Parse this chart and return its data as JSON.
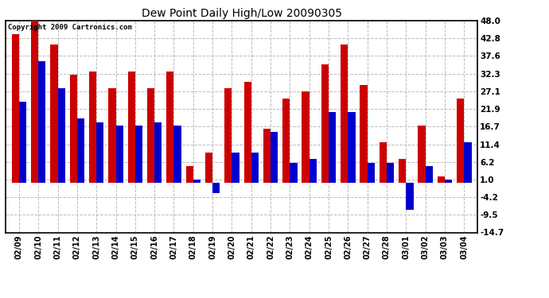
{
  "title": "Dew Point Daily High/Low 20090305",
  "copyright": "Copyright 2009 Cartronics.com",
  "dates": [
    "02/09",
    "02/10",
    "02/11",
    "02/12",
    "02/13",
    "02/14",
    "02/15",
    "02/16",
    "02/17",
    "02/18",
    "02/19",
    "02/20",
    "02/21",
    "02/22",
    "02/23",
    "02/24",
    "02/25",
    "02/26",
    "02/27",
    "02/28",
    "03/01",
    "03/02",
    "03/03",
    "03/04"
  ],
  "highs": [
    44.0,
    48.0,
    41.0,
    32.0,
    33.0,
    28.0,
    33.0,
    28.0,
    33.0,
    5.0,
    9.0,
    28.0,
    30.0,
    16.0,
    25.0,
    27.0,
    35.0,
    41.0,
    29.0,
    12.0,
    7.0,
    17.0,
    2.0,
    25.0
  ],
  "lows": [
    24.0,
    36.0,
    28.0,
    19.0,
    18.0,
    17.0,
    17.0,
    18.0,
    17.0,
    1.0,
    -3.0,
    9.0,
    9.0,
    15.0,
    6.0,
    7.0,
    21.0,
    21.0,
    6.0,
    6.0,
    -8.0,
    5.0,
    1.0,
    12.0
  ],
  "high_color": "#cc0000",
  "low_color": "#0000cc",
  "bg_color": "#ffffff",
  "grid_color": "#bbbbbb",
  "ylim": [
    -14.7,
    48.0
  ],
  "yticks": [
    48.0,
    42.8,
    37.6,
    32.3,
    27.1,
    21.9,
    16.7,
    11.4,
    6.2,
    1.0,
    -4.2,
    -9.5,
    -14.7
  ],
  "bar_width": 0.38,
  "figsize": [
    6.9,
    3.75
  ],
  "dpi": 100
}
